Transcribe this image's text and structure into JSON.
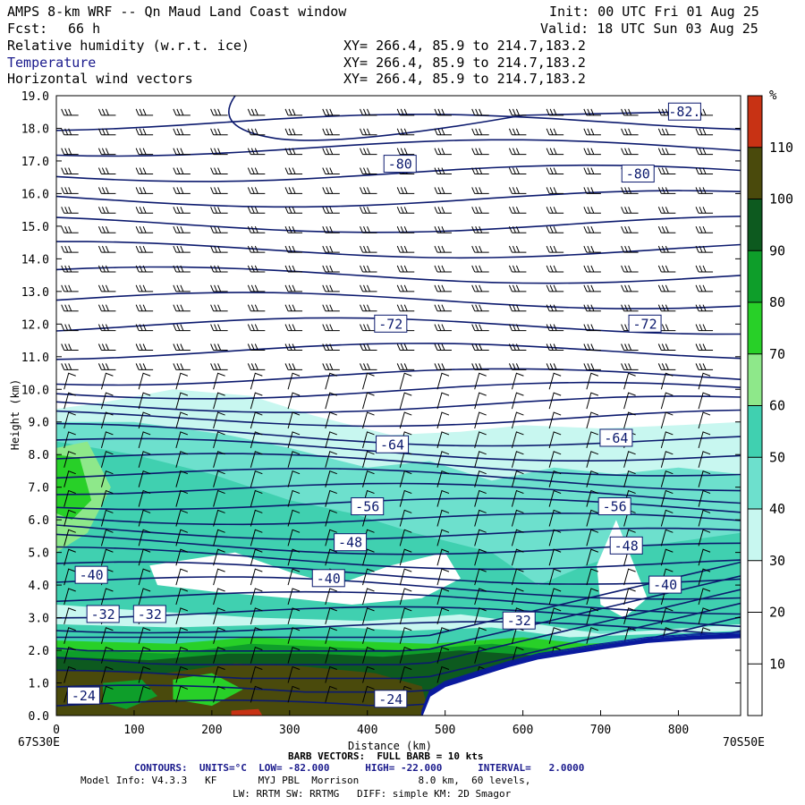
{
  "header": {
    "title": "AMPS 8-km WRF -- Qn Maud Land Coast window",
    "fcst_label": "Fcst:",
    "fcst_value": "66 h",
    "init": "Init: 00 UTC Fri 01 Aug 25",
    "valid": "Valid: 18 UTC Sun 03 Aug 25",
    "fields": [
      {
        "name": "Relative humidity (w.r.t. ice)",
        "xy": "XY= 266.4, 85.9 to 214.7,183.2"
      },
      {
        "name": "Temperature",
        "xy": "XY= 266.4, 85.9 to 214.7,183.2"
      },
      {
        "name": "Horizontal wind vectors",
        "xy": "XY= 266.4, 85.9 to 214.7,183.2"
      }
    ]
  },
  "chart_data": {
    "type": "cross-section",
    "xlabel": "Distance (km)",
    "ylabel": "Height (km)",
    "xlim": [
      0,
      880
    ],
    "ylim": [
      0,
      19
    ],
    "xticks": [
      0,
      100,
      200,
      300,
      400,
      500,
      600,
      700,
      800
    ],
    "yticks": [
      "0.0",
      "1.0",
      "2.0",
      "3.0",
      "4.0",
      "5.0",
      "6.0",
      "7.0",
      "8.0",
      "9.0",
      "10.0",
      "11.0",
      "12.0",
      "13.0",
      "14.0",
      "15.0",
      "16.0",
      "17.0",
      "18.0",
      "19.0"
    ],
    "left_endpoint": "67S30E",
    "right_endpoint": "70S50E",
    "colorbar": {
      "unit": "%",
      "levels": [
        10,
        20,
        30,
        40,
        50,
        60,
        70,
        80,
        90,
        100,
        110
      ],
      "colors": [
        "#ffffff",
        "#ffffff",
        "#ffffff",
        "#c8f7f0",
        "#6de0cd",
        "#40d0b0",
        "#8ee88a",
        "#28d028",
        "#0e9e2a",
        "#0d5a1f",
        "#4a4a0c",
        "#c83214"
      ]
    },
    "temperature_labels": [
      {
        "text": "-82.",
        "x": 808,
        "y": 18.5
      },
      {
        "text": "-80",
        "x": 442,
        "y": 16.9
      },
      {
        "text": "-80",
        "x": 748,
        "y": 16.6
      },
      {
        "text": "-72",
        "x": 430,
        "y": 12.0
      },
      {
        "text": "-72",
        "x": 757,
        "y": 12.0
      },
      {
        "text": "-64",
        "x": 432,
        "y": 8.3
      },
      {
        "text": "-64",
        "x": 720,
        "y": 8.5
      },
      {
        "text": "-56",
        "x": 400,
        "y": 6.4
      },
      {
        "text": "-56",
        "x": 718,
        "y": 6.4
      },
      {
        "text": "-48",
        "x": 378,
        "y": 5.3
      },
      {
        "text": "-48",
        "x": 733,
        "y": 5.2
      },
      {
        "text": "-40",
        "x": 45,
        "y": 4.3
      },
      {
        "text": "-40",
        "x": 350,
        "y": 4.2
      },
      {
        "text": "-40",
        "x": 783,
        "y": 4.0
      },
      {
        "text": "-32",
        "x": 60,
        "y": 3.1
      },
      {
        "text": "-32",
        "x": 120,
        "y": 3.1
      },
      {
        "text": "-32",
        "x": 595,
        "y": 2.9
      },
      {
        "text": "-24",
        "x": 35,
        "y": 0.6
      },
      {
        "text": "-24",
        "x": 430,
        "y": 0.5
      }
    ]
  },
  "footer": {
    "barb_vectors": "BARB VECTORS:  FULL BARB = 10 kts",
    "contours": "CONTOURS:  UNITS=°C  LOW= -82.000      HIGH= -22.000      INTERVAL=   2.0000",
    "model_info": "Model Info: V4.3.3   KF       MYJ PBL  Morrison          8.0 km,  60 levels,",
    "physics": "LW: RRTM SW: RRTMG   DIFF: simple KM: 2D Smagor"
  },
  "colors": {
    "contour": "#0c1a6e",
    "barb": "#000000",
    "terrain": "#0a1a9e",
    "label_blue": "#1a1a8c"
  }
}
